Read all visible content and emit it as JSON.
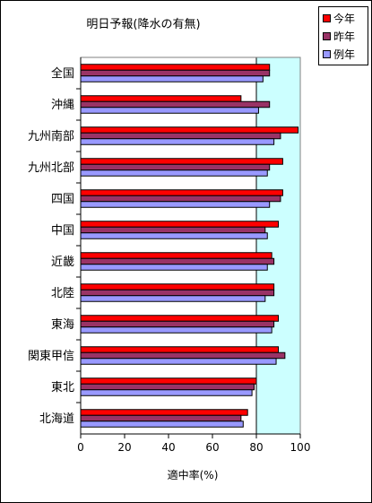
{
  "chart_data": {
    "type": "bar",
    "orientation": "horizontal",
    "title": "明日予報(降水の有無)",
    "xlabel": "適中率(%)",
    "xlim": [
      0,
      100
    ],
    "xticks": [
      0,
      20,
      40,
      60,
      80,
      100
    ],
    "reference_line": 80,
    "categories": [
      "全国",
      "沖縄",
      "九州南部",
      "九州北部",
      "四国",
      "中国",
      "近畿",
      "北陸",
      "東海",
      "関東甲信",
      "東北",
      "北海道"
    ],
    "series": [
      {
        "name": "今年",
        "color": "#ff0000",
        "values": [
          86,
          73,
          99,
          92,
          92,
          90,
          87,
          88,
          90,
          90,
          80,
          76
        ]
      },
      {
        "name": "昨年",
        "color": "#993366",
        "values": [
          86,
          86,
          91,
          86,
          91,
          84,
          88,
          88,
          88,
          93,
          79,
          73
        ]
      },
      {
        "name": "例年",
        "color": "#9999ff",
        "values": [
          83,
          81,
          88,
          85,
          86,
          85,
          85,
          84,
          87,
          89,
          78,
          74
        ]
      }
    ],
    "legend_position": "top-right",
    "plot_background": "#ccffff",
    "grid": false
  }
}
